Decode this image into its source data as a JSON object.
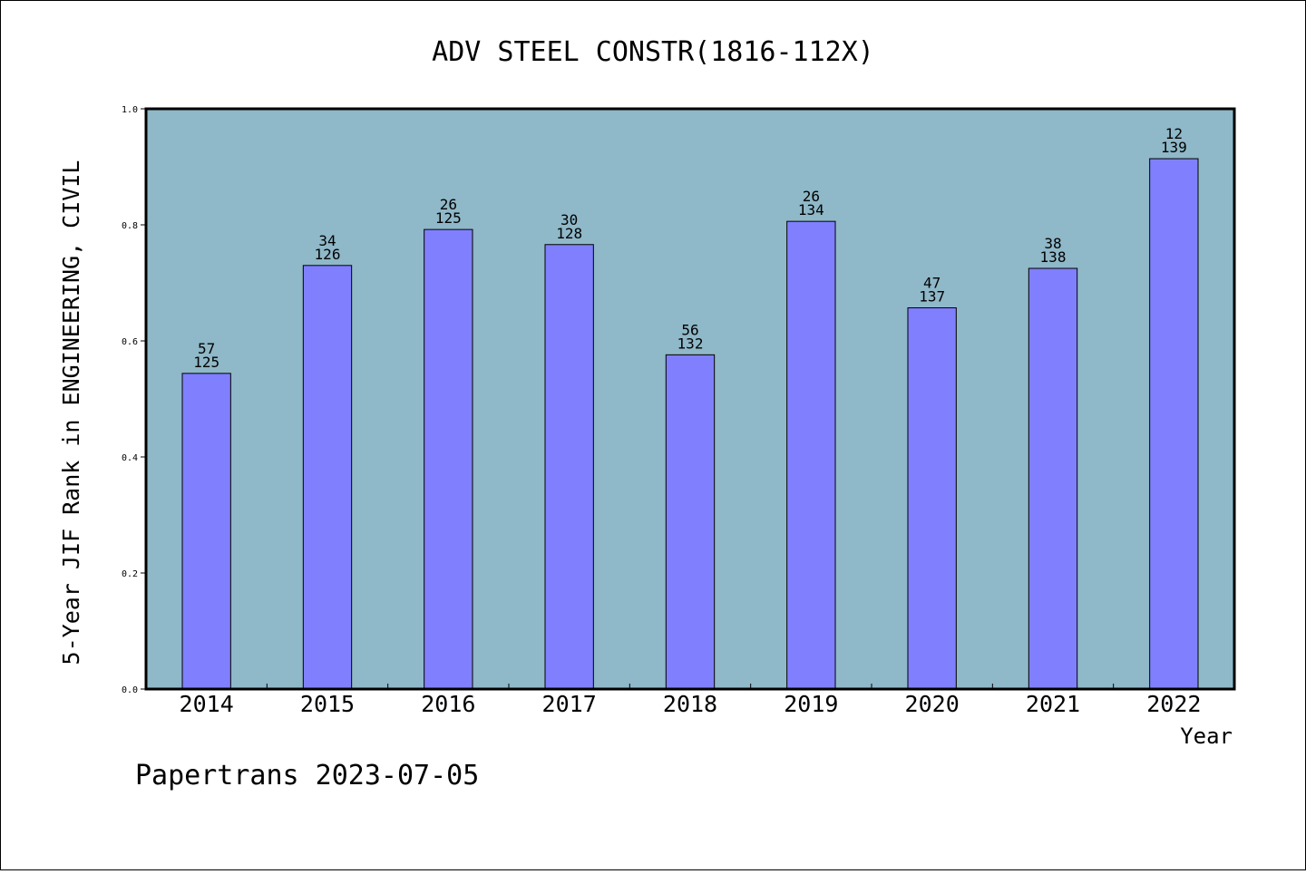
{
  "chart_data": {
    "type": "bar",
    "title": "ADV STEEL CONSTR(1816-112X)",
    "xlabel": "Year",
    "ylabel": "5-Year JIF Rank in ENGINEERING, CIVIL",
    "ylim": [
      0,
      1.0
    ],
    "yticks": [
      "0.0",
      "0.2",
      "0.4",
      "0.6",
      "0.8",
      "1.0"
    ],
    "categories": [
      "2014",
      "2015",
      "2016",
      "2017",
      "2018",
      "2019",
      "2020",
      "2021",
      "2022"
    ],
    "values": [
      0.544,
      0.73,
      0.792,
      0.766,
      0.576,
      0.806,
      0.657,
      0.725,
      0.914
    ],
    "rank": [
      "57",
      "34",
      "26",
      "30",
      "56",
      "26",
      "47",
      "38",
      "12"
    ],
    "total": [
      "125",
      "126",
      "125",
      "128",
      "132",
      "134",
      "137",
      "138",
      "139"
    ],
    "grid": false,
    "legend": "none",
    "colors": {
      "plot_background": "#8fb8c8",
      "bar_fill": "#8080ff",
      "bar_stroke": "#000000"
    }
  },
  "footer": "Papertrans 2023-07-05"
}
